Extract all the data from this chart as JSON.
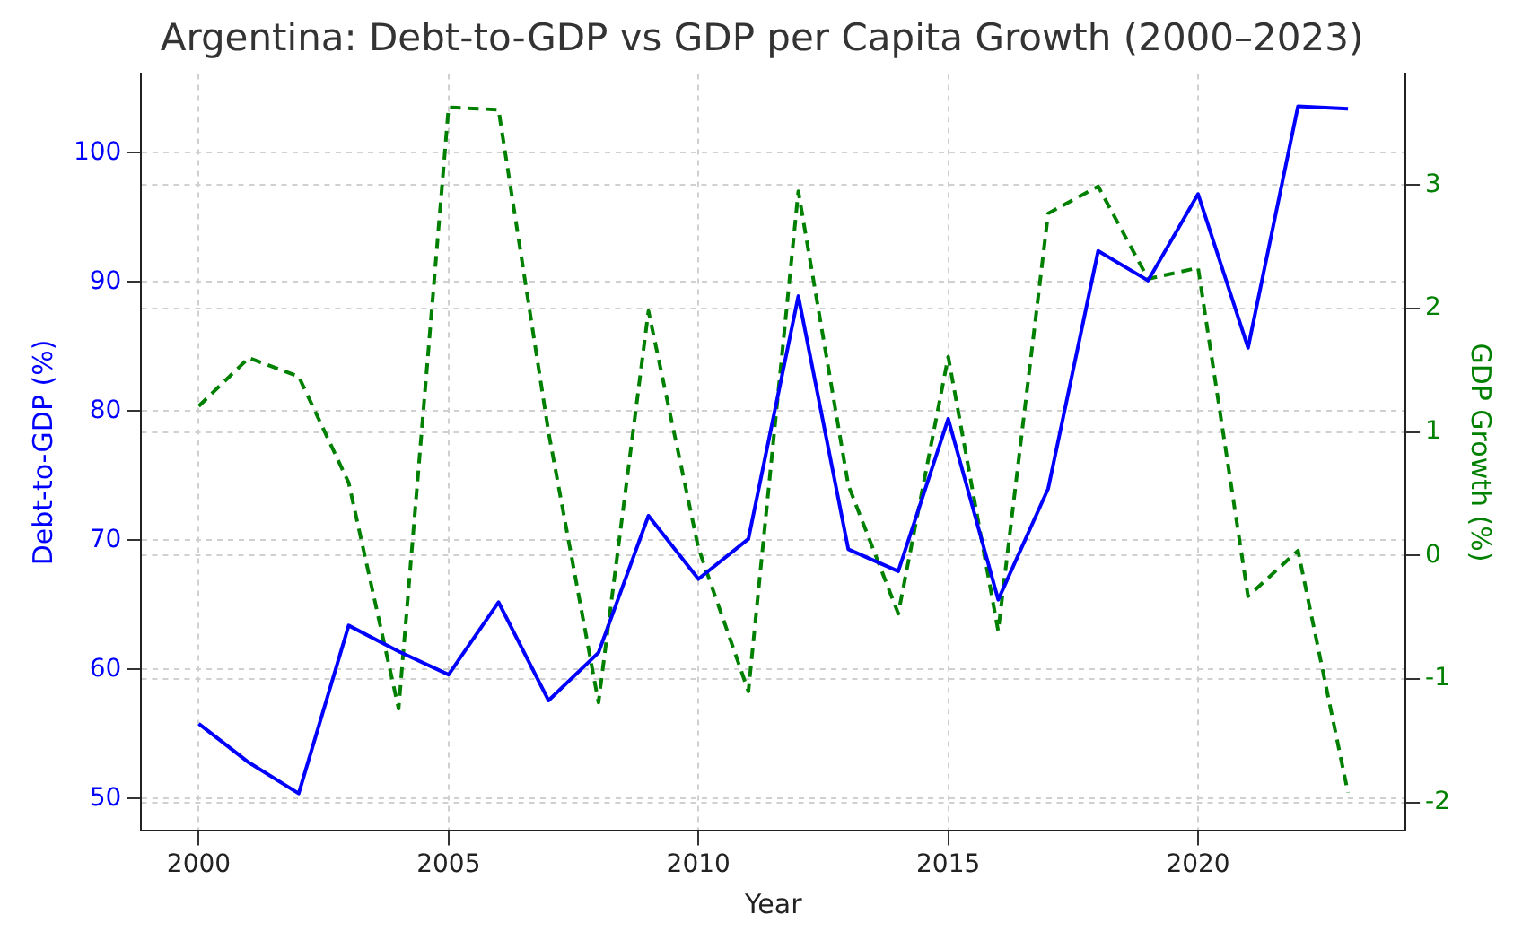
{
  "chart_data": {
    "type": "line",
    "title": "Argentina: Debt-to-GDP vs GDP per Capita Growth (2000–2023)",
    "xlabel": "Year",
    "ylabel": "Debt-to-GDP (%)",
    "y2label": "GDP Growth (%)",
    "x": [
      2000,
      2001,
      2002,
      2003,
      2004,
      2005,
      2006,
      2007,
      2008,
      2009,
      2010,
      2011,
      2012,
      2013,
      2014,
      2015,
      2016,
      2017,
      2018,
      2019,
      2020,
      2021,
      2022,
      2023
    ],
    "series": [
      {
        "color": "#0000ff",
        "line_style": "solid",
        "values": [
          55.8,
          52.8,
          50.4,
          63.4,
          61.4,
          59.6,
          65.2,
          57.6,
          61.3,
          71.9,
          67.0,
          70.1,
          88.9,
          69.3,
          67.6,
          79.4,
          65.4,
          74.0,
          92.4,
          90.1,
          96.8,
          84.9,
          103.6,
          103.4
        ]
      },
      {
        "color": "#008000",
        "line_style": "dashed",
        "axis": "y2",
        "values": [
          1.21,
          1.6,
          1.45,
          0.59,
          -1.24,
          3.63,
          3.61,
          1.0,
          -1.19,
          1.98,
          0.06,
          -1.1,
          2.95,
          0.57,
          -0.47,
          1.61,
          -0.61,
          2.77,
          2.99,
          2.24,
          2.33,
          -0.33,
          0.04,
          -1.92
        ]
      }
    ],
    "xlim": [
      1998.85,
      2024.15
    ],
    "xticks": [
      2000,
      2005,
      2010,
      2015,
      2020
    ],
    "ylim": [
      47.5,
      106.1
    ],
    "yticks": [
      50,
      60,
      70,
      80,
      90,
      100
    ],
    "y2lim": [
      -2.23,
      3.9
    ],
    "y2ticks": [
      -2,
      -1,
      0,
      1,
      2,
      3
    ],
    "grid": true,
    "legend": false,
    "marker": "none"
  }
}
